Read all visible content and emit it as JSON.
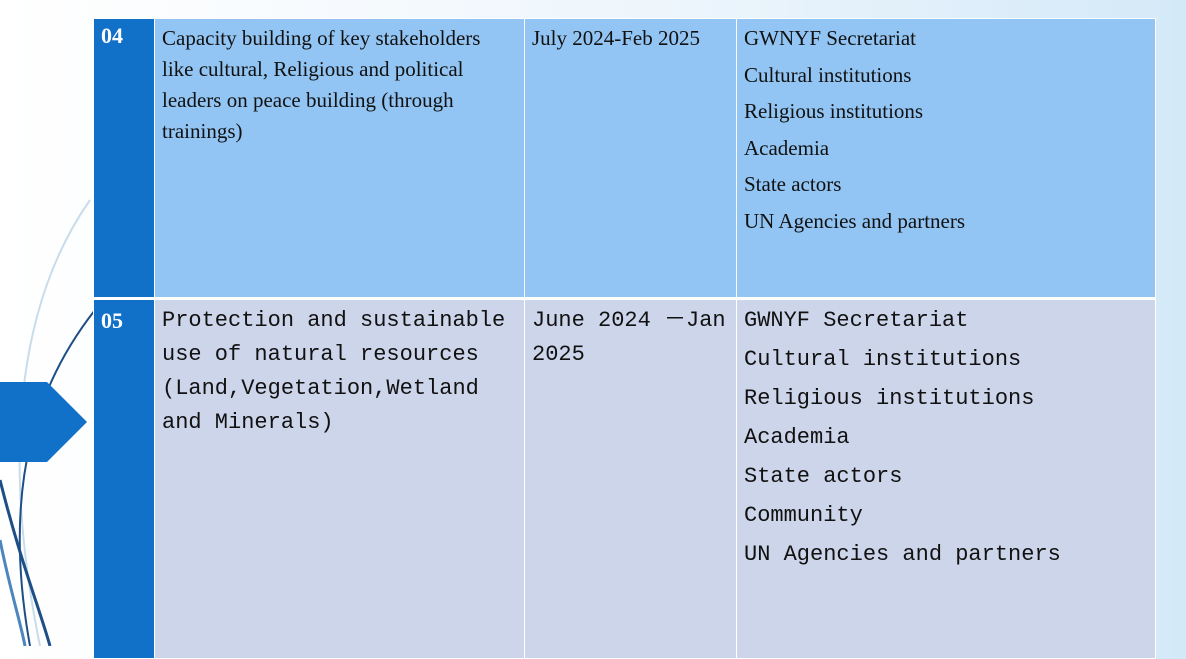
{
  "table": {
    "rows": [
      {
        "number": "04",
        "activity": "Capacity building of key stakeholders like cultural, Religious and political leaders on peace building (through trainings)",
        "timeline": "July 2024-Feb 2025",
        "stakeholders": [
          "GWNYF Secretariat",
          "Cultural institutions",
          "Religious institutions",
          "Academia",
          "State actors",
          "UN Agencies and partners"
        ]
      },
      {
        "number": "05",
        "activity": "Protection and sustainable use of natural resources (Land,Vegetation,Wetland and Minerals)",
        "timeline": "June 2024 －Jan 2025",
        "stakeholders": [
          "GWNYF Secretariat",
          "Cultural institutions",
          "Religious institutions",
          "Academia",
          "State actors",
          "Community",
          "UN Agencies and partners"
        ]
      }
    ]
  }
}
